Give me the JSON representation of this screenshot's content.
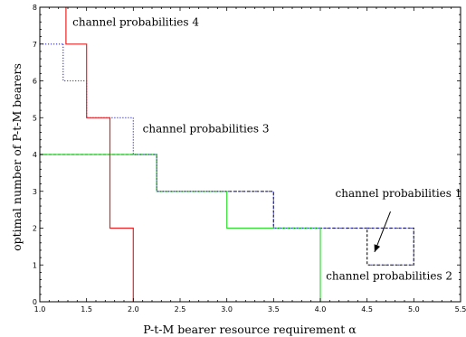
{
  "chart_data": {
    "type": "line",
    "title": "",
    "xlabel": "P-t-M bearer resource requirement α",
    "ylabel": "optimal number of P-t-M bearers",
    "xlim": [
      1.0,
      5.5
    ],
    "ylim": [
      0,
      8
    ],
    "xticks": [
      "1.0",
      "1.5",
      "2.0",
      "2.5",
      "3.0",
      "3.5",
      "4.0",
      "4.5",
      "5.0",
      "5.5"
    ],
    "yticks": [
      "0",
      "1",
      "2",
      "3",
      "4",
      "5",
      "6",
      "7",
      "8"
    ],
    "grid": false,
    "series": [
      {
        "style": "dashed-black",
        "color": "#222222",
        "step_points": [
          [
            1.0,
            4
          ],
          [
            2.25,
            4
          ],
          [
            2.25,
            3
          ],
          [
            3.5,
            3
          ],
          [
            3.5,
            2
          ],
          [
            4.5,
            2
          ],
          [
            4.5,
            1
          ],
          [
            5.0,
            1
          ],
          [
            5.0,
            2
          ],
          [
            4.5,
            2
          ]
        ]
      },
      {
        "style": "solid-green",
        "color": "#33dd33",
        "step_points": [
          [
            1.0,
            4
          ],
          [
            2.25,
            4
          ],
          [
            2.25,
            3
          ],
          [
            3.0,
            3
          ],
          [
            3.0,
            2
          ],
          [
            4.0,
            2
          ],
          [
            4.0,
            0
          ]
        ]
      },
      {
        "style": "dotted-blue",
        "color": "#3333cc",
        "step_points": [
          [
            1.25,
            7
          ],
          [
            1.25,
            6
          ],
          [
            1.5,
            6
          ],
          [
            1.5,
            5
          ],
          [
            2.0,
            5
          ],
          [
            2.0,
            4
          ],
          [
            2.25,
            4
          ],
          [
            2.25,
            3
          ],
          [
            3.5,
            3
          ],
          [
            3.5,
            2
          ],
          [
            5.0,
            2
          ],
          [
            5.0,
            1
          ],
          [
            4.5,
            1
          ]
        ]
      },
      {
        "style": "solid-red",
        "color": "#ee2222",
        "step_points": [
          [
            1.28,
            8
          ],
          [
            1.28,
            7
          ],
          [
            1.5,
            7
          ],
          [
            1.5,
            5
          ],
          [
            1.75,
            5
          ],
          [
            1.75,
            2
          ],
          [
            2.0,
            2
          ],
          [
            2.0,
            0
          ]
        ]
      },
      {
        "style": "dotted-blue",
        "color": "#3333cc",
        "step_points": [
          [
            1.0,
            7
          ],
          [
            1.25,
            7
          ]
        ]
      }
    ],
    "annotations": [
      {
        "text": "channel probabilities 4",
        "x": 1.35,
        "y": 7.5
      },
      {
        "text": "channel probabilities 3",
        "x": 2.1,
        "y": 4.6
      },
      {
        "text": "channel probabilities 1",
        "x": 4.16,
        "y": 2.85
      },
      {
        "text": "channel probabilities 2",
        "x": 4.06,
        "y": 0.6
      }
    ],
    "arrow": {
      "from": [
        4.75,
        2.45
      ],
      "to": [
        4.58,
        1.35
      ]
    }
  }
}
